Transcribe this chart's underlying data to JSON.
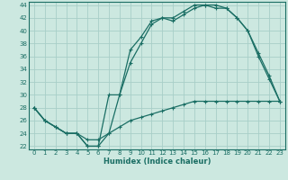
{
  "xlabel": "Humidex (Indice chaleur)",
  "bg_color": "#cce8e0",
  "line_color": "#1a6e64",
  "grid_color": "#a8cec8",
  "xlim": [
    -0.5,
    23.5
  ],
  "ylim": [
    21.5,
    44.5
  ],
  "yticks": [
    22,
    24,
    26,
    28,
    30,
    32,
    34,
    36,
    38,
    40,
    42,
    44
  ],
  "xticks": [
    0,
    1,
    2,
    3,
    4,
    5,
    6,
    7,
    8,
    9,
    10,
    11,
    12,
    13,
    14,
    15,
    16,
    17,
    18,
    19,
    20,
    21,
    22,
    23
  ],
  "line1_x": [
    0,
    1,
    2,
    3,
    4,
    5,
    6,
    7,
    8,
    9,
    10,
    11,
    12,
    13,
    14,
    15,
    16,
    17,
    18,
    19,
    20,
    21,
    22,
    23
  ],
  "line1_y": [
    28,
    26,
    25,
    24,
    24,
    22,
    22,
    24,
    30,
    37,
    39,
    41.5,
    42,
    41.5,
    42.5,
    43.5,
    44,
    43.5,
    43.5,
    42,
    40,
    36,
    32.5,
    29
  ],
  "line2_x": [
    0,
    1,
    2,
    3,
    4,
    5,
    6,
    7,
    8,
    9,
    10,
    11,
    12,
    13,
    14,
    15,
    16,
    17,
    18,
    19,
    20,
    21,
    22,
    23
  ],
  "line2_y": [
    28,
    26,
    25,
    24,
    24,
    22,
    22,
    30,
    30,
    35,
    38,
    41,
    42,
    42,
    43,
    44,
    44,
    44,
    43.5,
    42,
    40,
    36.5,
    33,
    29
  ],
  "line3_x": [
    0,
    1,
    2,
    3,
    4,
    5,
    6,
    7,
    8,
    9,
    10,
    11,
    12,
    13,
    14,
    15,
    16,
    17,
    18,
    19,
    20,
    21,
    22,
    23
  ],
  "line3_y": [
    28,
    26,
    25,
    24,
    24,
    23,
    23,
    24,
    25,
    26,
    26.5,
    27,
    27.5,
    28,
    28.5,
    29,
    29,
    29,
    29,
    29,
    29,
    29,
    29,
    29
  ]
}
